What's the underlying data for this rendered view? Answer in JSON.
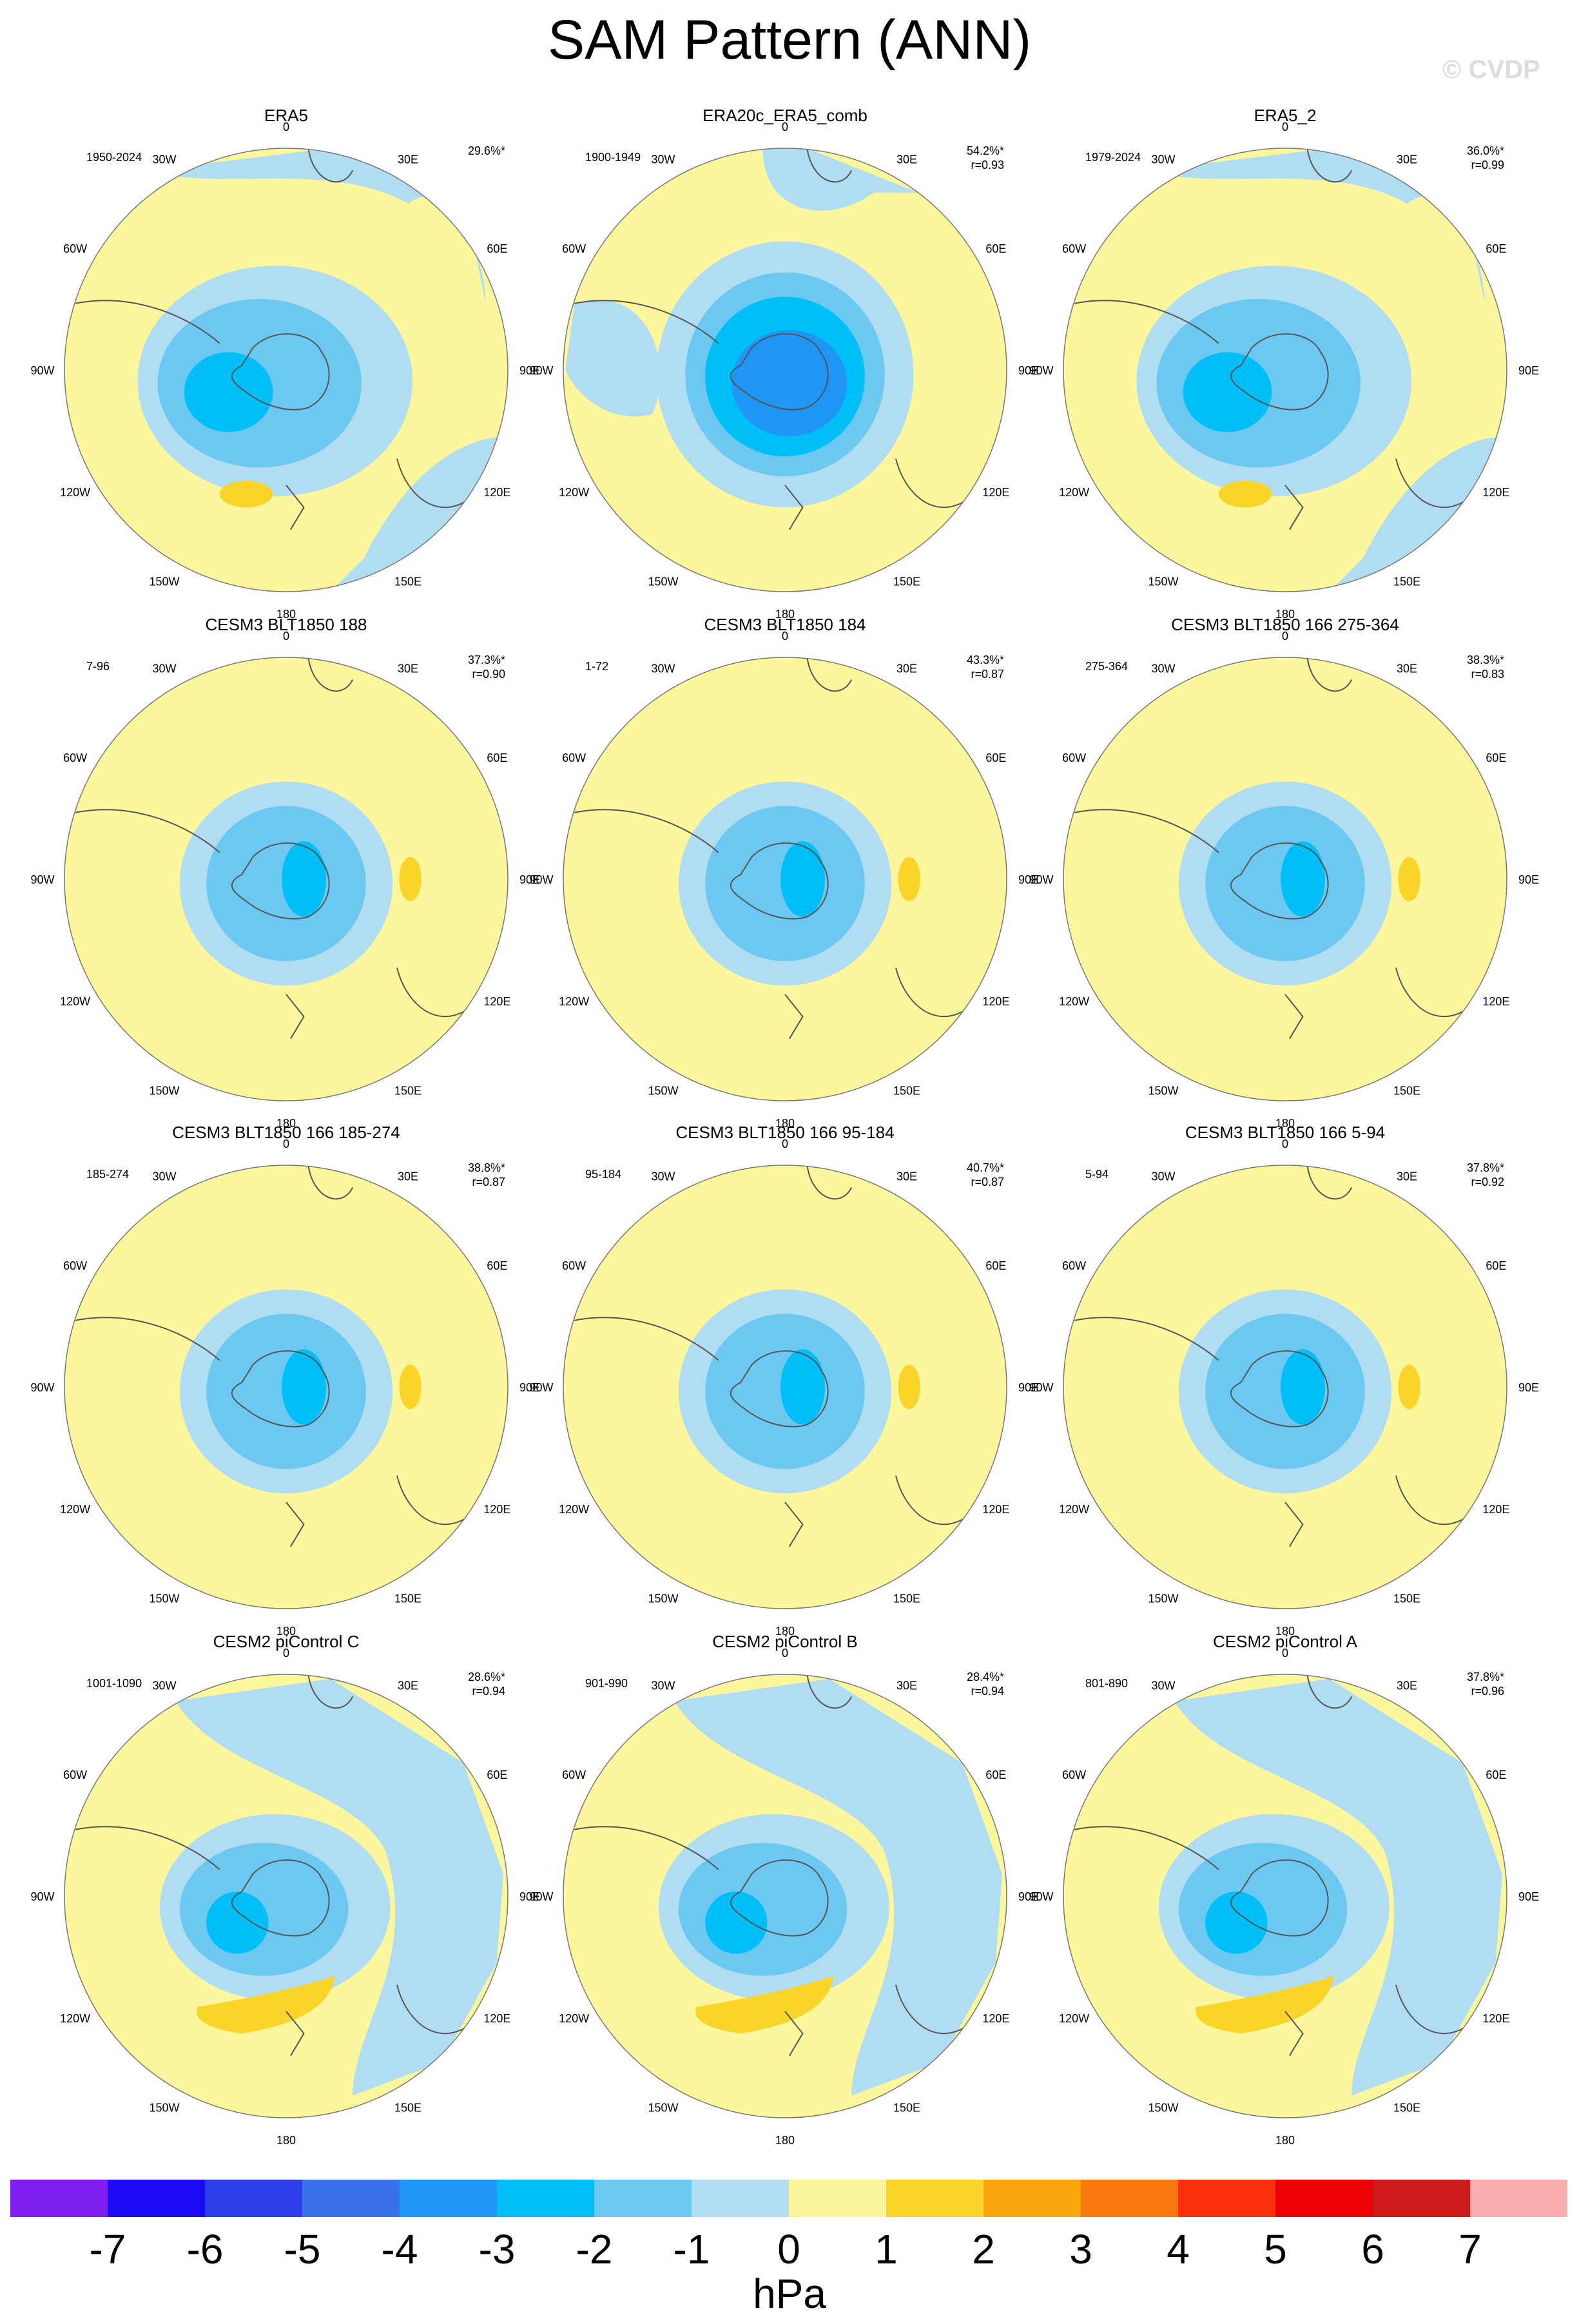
{
  "page": {
    "title": "SAM Pattern (ANN)",
    "watermark": "© CVDP",
    "units": "hPa"
  },
  "colorbar": {
    "colors": [
      "#7e1fef",
      "#1d0af5",
      "#2b3ee8",
      "#3972e8",
      "#1f96f5",
      "#00bef7",
      "#6cc8f0",
      "#b1ddf2",
      "#fcf79c",
      "#fad429",
      "#fba50d",
      "#fb7a0f",
      "#fa2f0c",
      "#ee0006",
      "#ce1b1b",
      "#fbaeb0"
    ],
    "labels": [
      "-7",
      "-6",
      "-5",
      "-4",
      "-3",
      "-2",
      "-1",
      "0",
      "1",
      "2",
      "3",
      "4",
      "5",
      "6",
      "7"
    ]
  },
  "longitude_labels": [
    "0",
    "30E",
    "60E",
    "90E",
    "120E",
    "150E",
    "180",
    "150W",
    "120W",
    "90W",
    "60W",
    "30W"
  ],
  "panels": [
    {
      "title": "ERA5",
      "period": "1950-2024",
      "variance": "29.6%*",
      "corr": "",
      "pattern": "era5"
    },
    {
      "title": "ERA20c_ERA5_comb",
      "period": "1900-1949",
      "variance": "54.2%*",
      "corr": "r=0.93",
      "pattern": "era20c"
    },
    {
      "title": "ERA5_2",
      "period": "1979-2024",
      "variance": "36.0%*",
      "corr": "r=0.99",
      "pattern": "era5"
    },
    {
      "title": "CESM3 BLT1850 188",
      "period": "7-96",
      "variance": "37.3%*",
      "corr": "r=0.90",
      "pattern": "cesm3"
    },
    {
      "title": "CESM3 BLT1850 184",
      "period": "1-72",
      "variance": "43.3%*",
      "corr": "r=0.87",
      "pattern": "cesm3"
    },
    {
      "title": "CESM3 BLT1850 166 275-364",
      "period": "275-364",
      "variance": "38.3%*",
      "corr": "r=0.83",
      "pattern": "cesm3"
    },
    {
      "title": "CESM3 BLT1850 166 185-274",
      "period": "185-274",
      "variance": "38.8%*",
      "corr": "r=0.87",
      "pattern": "cesm3"
    },
    {
      "title": "CESM3 BLT1850 166 95-184",
      "period": "95-184",
      "variance": "40.7%*",
      "corr": "r=0.87",
      "pattern": "cesm3"
    },
    {
      "title": "CESM3 BLT1850 166 5-94",
      "period": "5-94",
      "variance": "37.8%*",
      "corr": "r=0.92",
      "pattern": "cesm3"
    },
    {
      "title": "CESM2 piControl C",
      "period": "1001-1090",
      "variance": "28.6%*",
      "corr": "r=0.94",
      "pattern": "cesm2"
    },
    {
      "title": "CESM2 piControl B",
      "period": "901-990",
      "variance": "28.4%*",
      "corr": "r=0.94",
      "pattern": "cesm2"
    },
    {
      "title": "CESM2 piControl A",
      "period": "801-890",
      "variance": "37.8%*",
      "corr": "r=0.96",
      "pattern": "cesm2"
    }
  ]
}
